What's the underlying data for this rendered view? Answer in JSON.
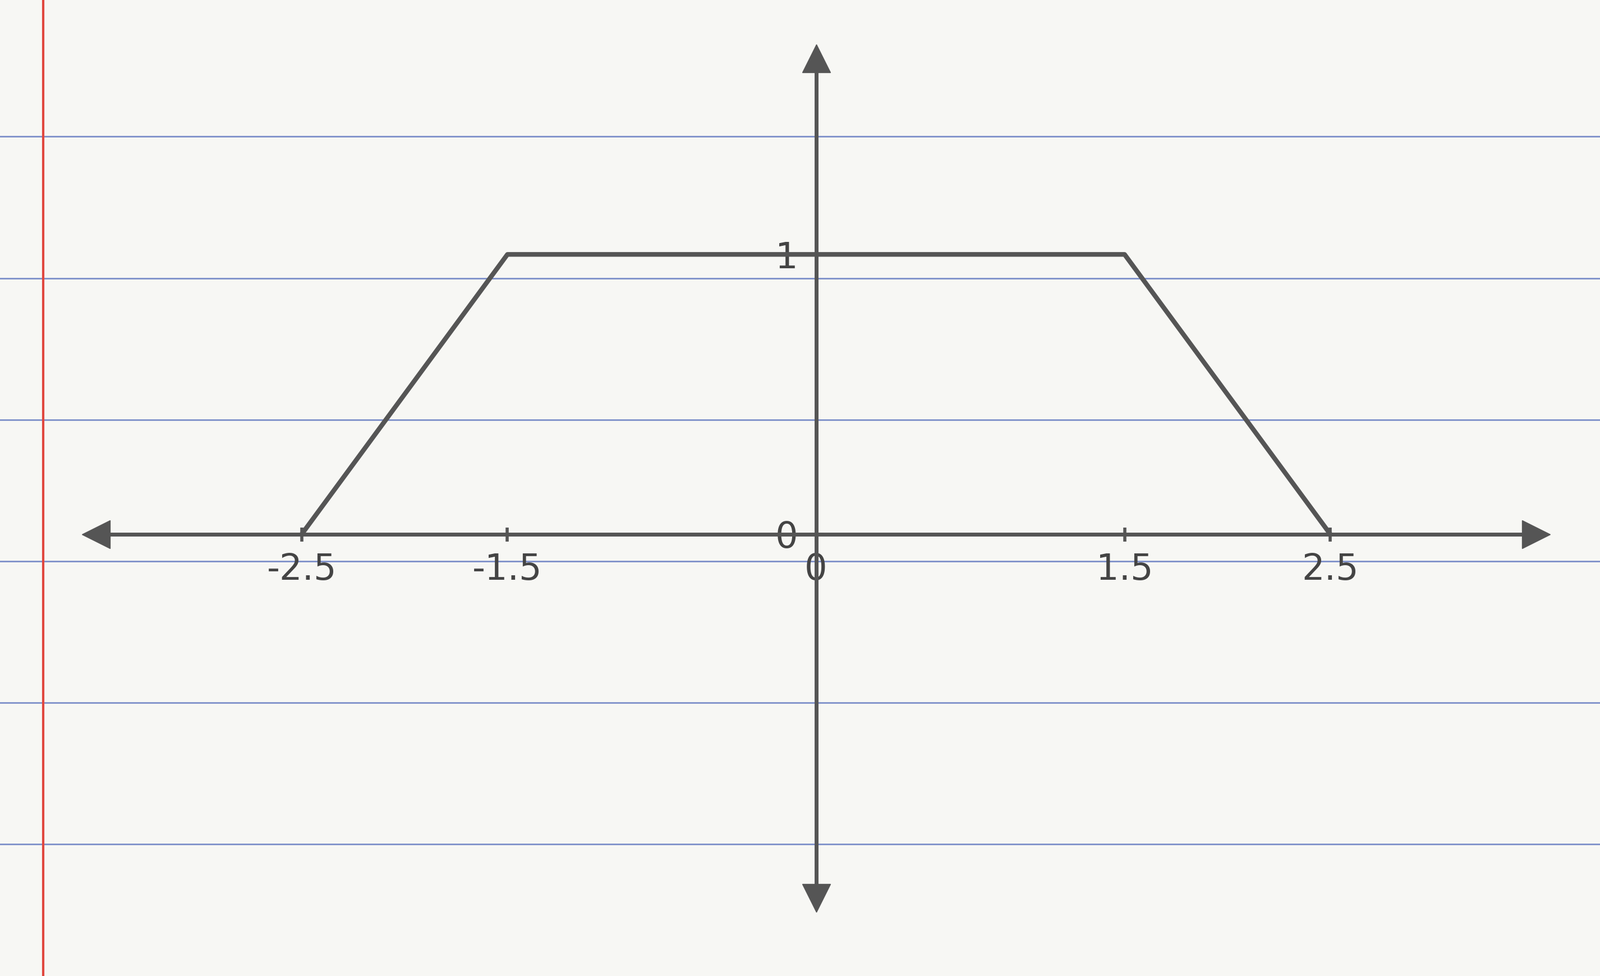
{
  "chart_data": {
    "type": "line",
    "x": [
      -2.5,
      -1.5,
      1.5,
      2.5
    ],
    "values": [
      0,
      1,
      1,
      0
    ],
    "color": "#555555",
    "xlim": [
      -3.5,
      3.5
    ],
    "xticks": [
      -2.5,
      -1.5,
      0,
      1.5,
      2.5
    ],
    "ylim": [
      -1.3,
      1.7
    ],
    "yticks": [
      0,
      1
    ],
    "grid": false
  }
}
